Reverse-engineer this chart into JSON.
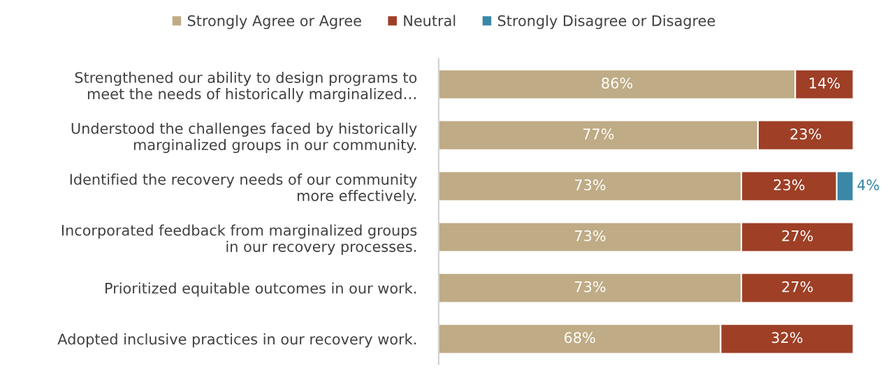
{
  "chart_data": {
    "type": "bar",
    "orientation": "horizontal",
    "stacked": true,
    "categories": [
      "Strengthened our ability to design programs to\nmeet the needs of historically marginalized…",
      "Understood the challenges faced by historically\nmarginalized groups in our community.",
      "Identified the recovery needs of our community\nmore effectively.",
      "Incorporated feedback from marginalized groups\nin our recovery processes.",
      "Prioritized equitable outcomes in our work.",
      "Adopted inclusive practices in our recovery work."
    ],
    "series": [
      {
        "name": "Strongly Agree or Agree",
        "color": "#bfab85",
        "values": [
          86,
          77,
          73,
          73,
          73,
          68
        ],
        "value_labels": [
          "86%",
          "77%",
          "73%",
          "73%",
          "73%",
          "68%"
        ]
      },
      {
        "name": "Neutral",
        "color": "#9e3f26",
        "values": [
          14,
          23,
          23,
          27,
          27,
          32
        ],
        "value_labels": [
          "14%",
          "23%",
          "23%",
          "27%",
          "27%",
          "32%"
        ]
      },
      {
        "name": "Strongly Disagree or Disagree",
        "color": "#3a87a8",
        "values": [
          null,
          null,
          4,
          null,
          null,
          null
        ],
        "value_labels": [
          null,
          null,
          "4%",
          null,
          null,
          null
        ]
      }
    ],
    "xlim": [
      0,
      100
    ],
    "tick_labels": "y",
    "legend": "top",
    "grid": false
  }
}
